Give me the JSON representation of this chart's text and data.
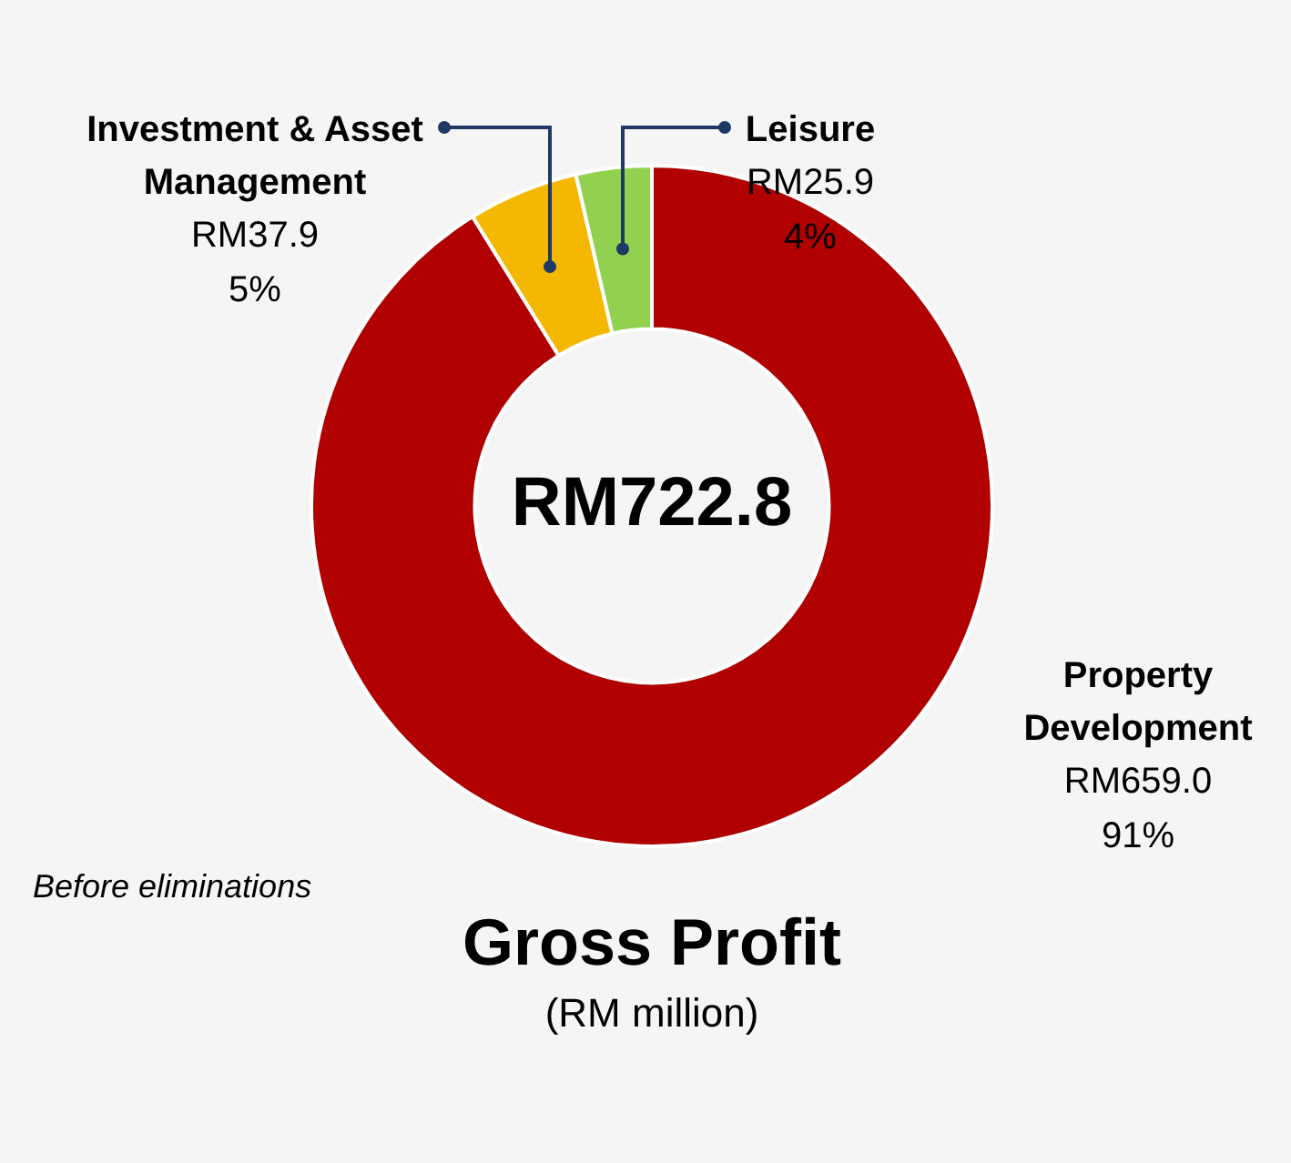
{
  "chart_data": {
    "type": "donut",
    "title": "Gross Profit",
    "subtitle": "(RM million)",
    "categories": [
      "Property Development",
      "Investment & Asset Management",
      "Leisure"
    ],
    "values": [
      659.0,
      37.9,
      25.9
    ],
    "colors": [
      "#b00000",
      "#f5b800",
      "#92d050"
    ],
    "value_labels": [
      "RM659.0\n91%",
      "RM37.9\n5%",
      "RM25.9\n4%"
    ],
    "annotations": [
      "RM722.8",
      "Before eliminations"
    ],
    "legend": false
  }
}
